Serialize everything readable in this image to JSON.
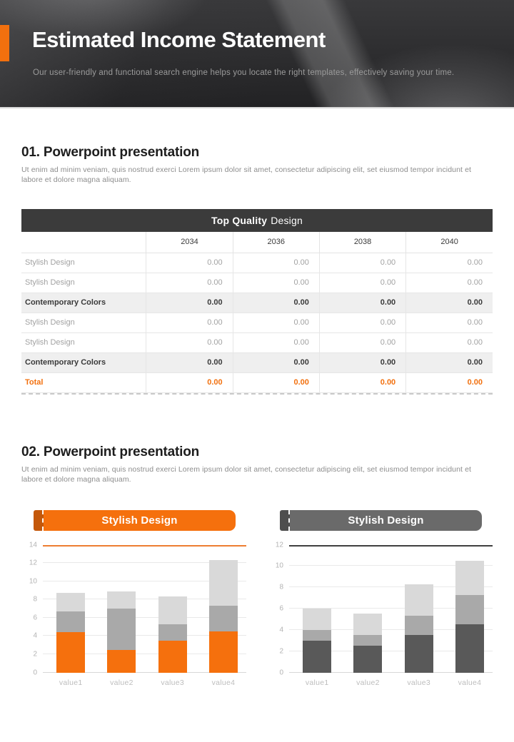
{
  "header": {
    "title": "Estimated Income Statement",
    "subtitle": "Our user-friendly and functional search engine helps you locate the right templates, effectively saving your time."
  },
  "sections": [
    {
      "heading": "01. Powerpoint presentation",
      "body": "Ut enim ad minim veniam, quis nostrud exerci  Lorem ipsum dolor sit amet, consectetur adipiscing elit, set eiusmod tempor incidunt et labore et dolore magna aliquam."
    },
    {
      "heading": "02. Powerpoint presentation",
      "body": "Ut enim ad minim veniam, quis nostrud exerci  Lorem ipsum dolor sit amet, consectetur adipiscing elit, set eiusmod tempor incidunt et labore et dolore magna aliquam."
    }
  ],
  "table": {
    "title_bold": "Top Quality",
    "title_regular": "Design",
    "years": [
      "2034",
      "2036",
      "2038",
      "2040"
    ],
    "rows": [
      {
        "label": "Stylish Design",
        "style": "normal",
        "values": [
          "0.00",
          "0.00",
          "0.00",
          "0.00"
        ]
      },
      {
        "label": "Stylish Design",
        "style": "normal",
        "values": [
          "0.00",
          "0.00",
          "0.00",
          "0.00"
        ]
      },
      {
        "label": "Contemporary Colors",
        "style": "emphasis",
        "values": [
          "0.00",
          "0.00",
          "0.00",
          "0.00"
        ]
      },
      {
        "label": "Stylish Design",
        "style": "normal",
        "values": [
          "0.00",
          "0.00",
          "0.00",
          "0.00"
        ]
      },
      {
        "label": "Stylish Design",
        "style": "normal",
        "values": [
          "0.00",
          "0.00",
          "0.00",
          "0.00"
        ]
      },
      {
        "label": "Contemporary Colors",
        "style": "emphasis",
        "values": [
          "0.00",
          "0.00",
          "0.00",
          "0.00"
        ]
      },
      {
        "label": "Total",
        "style": "total",
        "values": [
          "0.00",
          "0.00",
          "0.00",
          "0.00"
        ]
      }
    ]
  },
  "colors": {
    "accent_orange": "#F2700E",
    "table_header_dark": "#3b3b3b",
    "banner_gray": "#6A6A6A"
  },
  "chart_data": [
    {
      "type": "bar",
      "stacked": true,
      "title": "Stylish Design",
      "categories": [
        "value1",
        "value2",
        "value3",
        "value4"
      ],
      "series": [
        {
          "name": "segment-bottom",
          "values": [
            4.4,
            2.5,
            3.5,
            4.5
          ],
          "color": "#F5700D"
        },
        {
          "name": "segment-middle",
          "values": [
            2.3,
            4.5,
            1.8,
            2.8
          ],
          "color": "#A9A9A9"
        },
        {
          "name": "segment-top",
          "values": [
            2.0,
            1.9,
            3.0,
            5.0
          ],
          "color": "#D9D9D9"
        }
      ],
      "ylim": [
        0,
        14
      ],
      "ystep": 2,
      "grid": true,
      "banner_color": "#F5700D",
      "banner_accent": "#C4580B",
      "top_line_color": "#ED7D31"
    },
    {
      "type": "bar",
      "stacked": true,
      "title": "Stylish Design",
      "categories": [
        "value1",
        "value2",
        "value3",
        "value4"
      ],
      "series": [
        {
          "name": "segment-bottom",
          "values": [
            3.0,
            2.5,
            3.5,
            4.5
          ],
          "color": "#595959"
        },
        {
          "name": "segment-middle",
          "values": [
            1.0,
            1.0,
            1.8,
            2.8
          ],
          "color": "#A9A9A9"
        },
        {
          "name": "segment-top",
          "values": [
            2.0,
            2.0,
            3.0,
            3.2
          ],
          "color": "#D9D9D9"
        }
      ],
      "ylim": [
        0,
        12
      ],
      "ystep": 2,
      "grid": true,
      "banner_color": "#6A6A6A",
      "banner_accent": "#4E4E4E",
      "top_line_color": "#3F3F3F"
    }
  ]
}
